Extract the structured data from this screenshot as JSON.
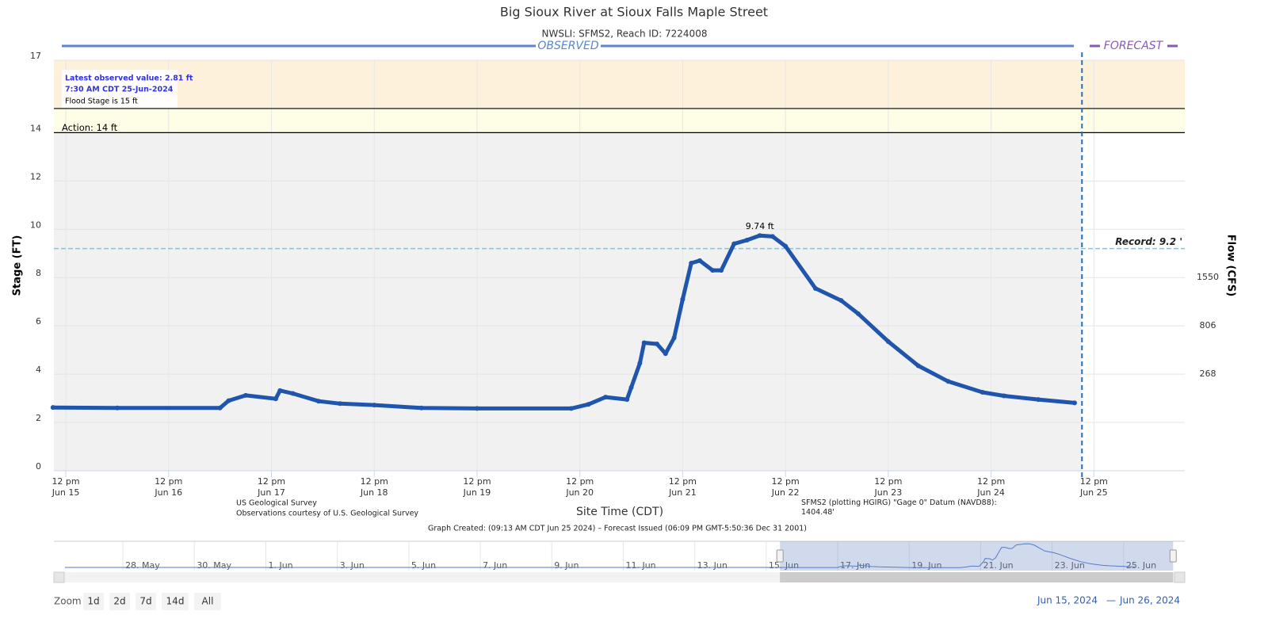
{
  "chart_data": {
    "type": "line",
    "title": "Big Sioux River at Sioux Falls Maple Street",
    "subtitle": "NWSLI: SFMS2, Reach ID: 7224008",
    "observed_label": "OBSERVED",
    "forecast_label": "FORECAST",
    "y_label": "Stage (FT)",
    "y2_label": "Flow (CFS)",
    "x_label": "Site Time (CDT)",
    "ylim": [
      0,
      17
    ],
    "yticks": [
      0,
      2,
      4,
      6,
      8,
      10,
      12,
      14,
      17
    ],
    "y2ticks": [
      268,
      806,
      1550
    ],
    "y2_tick_stage": [
      4,
      6,
      8
    ],
    "xlim": [
      "2024-06-15T09:13",
      "2024-06-26T09:13"
    ],
    "xticks": [
      {
        "value": "2024-06-15T12:00",
        "label": "12 pm",
        "date": "Jun 15"
      },
      {
        "value": "2024-06-16T12:00",
        "label": "12 pm",
        "date": "Jun 16"
      },
      {
        "value": "2024-06-17T12:00",
        "label": "12 pm",
        "date": "Jun 17"
      },
      {
        "value": "2024-06-18T12:00",
        "label": "12 pm",
        "date": "Jun 18"
      },
      {
        "value": "2024-06-19T12:00",
        "label": "12 pm",
        "date": "Jun 19"
      },
      {
        "value": "2024-06-20T12:00",
        "label": "12 pm",
        "date": "Jun 20"
      },
      {
        "value": "2024-06-21T12:00",
        "label": "12 pm",
        "date": "Jun 21"
      },
      {
        "value": "2024-06-22T12:00",
        "label": "12 pm",
        "date": "Jun 22"
      },
      {
        "value": "2024-06-23T12:00",
        "label": "12 pm",
        "date": "Jun 23"
      },
      {
        "value": "2024-06-24T12:00",
        "label": "12 pm",
        "date": "Jun 24"
      },
      {
        "value": "2024-06-25T12:00",
        "label": "12 pm",
        "date": "Jun 25"
      }
    ],
    "grid": true,
    "forecast_line": "2024-06-25T09:13",
    "bands": [
      {
        "from": 15,
        "to": 17,
        "color": "#fdf1dc"
      },
      {
        "from": 14,
        "to": 15,
        "color": "#fefde6"
      }
    ],
    "flood_stage": {
      "value": 15,
      "label": "Flood Stage is 15 ft"
    },
    "action": {
      "value": 14,
      "label": "Action: 14 ft"
    },
    "record": {
      "value": 9.2,
      "label": "Record: 9.2 '"
    },
    "latest": {
      "label": "Latest observed value: 2.81 ft",
      "time": "7:30 AM CDT 25-Jun-2024"
    },
    "series": [
      {
        "name": "Observed",
        "color": "#1f55ad",
        "x": [
          "2024-06-15T09:00",
          "2024-06-16T00:00",
          "2024-06-17T00:00",
          "2024-06-17T02:00",
          "2024-06-17T06:00",
          "2024-06-17T13:00",
          "2024-06-17T14:00",
          "2024-06-17T17:00",
          "2024-06-17T23:00",
          "2024-06-18T04:00",
          "2024-06-18T12:00",
          "2024-06-18T23:00",
          "2024-06-19T12:00",
          "2024-06-20T10:00",
          "2024-06-20T14:00",
          "2024-06-20T18:00",
          "2024-06-20T23:00",
          "2024-06-21T00:00",
          "2024-06-21T02:00",
          "2024-06-21T03:00",
          "2024-06-21T06:00",
          "2024-06-21T08:00",
          "2024-06-21T10:00",
          "2024-06-21T12:00",
          "2024-06-21T14:00",
          "2024-06-21T16:00",
          "2024-06-21T19:00",
          "2024-06-21T21:00",
          "2024-06-22T00:00",
          "2024-06-22T03:00",
          "2024-06-22T06:00",
          "2024-06-22T09:00",
          "2024-06-22T12:00",
          "2024-06-22T19:00",
          "2024-06-23T01:00",
          "2024-06-23T05:00",
          "2024-06-23T12:00",
          "2024-06-23T19:00",
          "2024-06-24T02:00",
          "2024-06-24T10:00",
          "2024-06-24T15:00",
          "2024-06-24T23:00",
          "2024-06-25T07:30"
        ],
        "values": [
          2.62,
          2.6,
          2.6,
          2.9,
          3.12,
          2.98,
          3.32,
          3.2,
          2.88,
          2.78,
          2.72,
          2.6,
          2.58,
          2.58,
          2.75,
          3.05,
          2.95,
          3.45,
          4.45,
          5.3,
          5.25,
          4.85,
          5.5,
          7.1,
          8.6,
          8.7,
          8.3,
          8.3,
          9.4,
          9.55,
          9.74,
          9.7,
          9.3,
          7.55,
          7.05,
          6.5,
          5.35,
          4.35,
          3.7,
          3.25,
          3.1,
          2.95,
          2.81
        ],
        "value_labels": [
          null,
          null,
          null,
          null,
          null,
          null,
          null,
          null,
          null,
          null,
          null,
          null,
          null,
          null,
          null,
          null,
          null,
          null,
          null,
          null,
          null,
          null,
          null,
          null,
          null,
          null,
          null,
          null,
          null,
          null,
          "9.74 ft",
          null,
          null,
          null,
          null,
          null,
          null,
          null,
          null,
          null,
          null,
          null,
          null
        ]
      }
    ],
    "credits": [
      "US Geological Survey",
      "Observations courtesy of U.S. Geological Survey"
    ],
    "datum": "SFMS2 (plotting HGIRG) \"Gage 0\" Datum (NAVD88): 1404.48'",
    "created": "Graph Created: (09:13 AM CDT Jun 25 2024) – Forecast Issued (06:09 PM GMT-5:50:36 Dec 31 2001)",
    "navigator": {
      "xlim": [
        "2024-05-26T01:40",
        "2024-06-26T09:36"
      ],
      "ticks": [
        {
          "value": "2024-05-28T00:00",
          "label": "28. May"
        },
        {
          "value": "2024-05-30T00:00",
          "label": "30. May"
        },
        {
          "value": "2024-06-01T00:00",
          "label": "1. Jun"
        },
        {
          "value": "2024-06-03T00:00",
          "label": "3. Jun"
        },
        {
          "value": "2024-06-05T00:00",
          "label": "5. Jun"
        },
        {
          "value": "2024-06-07T00:00",
          "label": "7. Jun"
        },
        {
          "value": "2024-06-09T00:00",
          "label": "9. Jun"
        },
        {
          "value": "2024-06-11T00:00",
          "label": "11. Jun"
        },
        {
          "value": "2024-06-13T00:00",
          "label": "13. Jun"
        },
        {
          "value": "2024-06-15T00:00",
          "label": "15. Jun"
        },
        {
          "value": "2024-06-17T00:00",
          "label": "17. Jun"
        },
        {
          "value": "2024-06-19T00:00",
          "label": "19. Jun"
        },
        {
          "value": "2024-06-21T00:00",
          "label": "21. Jun"
        },
        {
          "value": "2024-06-23T00:00",
          "label": "23. Jun"
        },
        {
          "value": "2024-06-25T00:00",
          "label": "25. Jun"
        }
      ]
    },
    "zoom_label": "Zoom",
    "zoom_buttons": [
      "1d",
      "2d",
      "7d",
      "14d",
      "All"
    ],
    "range_from": "Jun 15, 2024",
    "range_sep": "—",
    "range_to": "Jun 26, 2024"
  }
}
